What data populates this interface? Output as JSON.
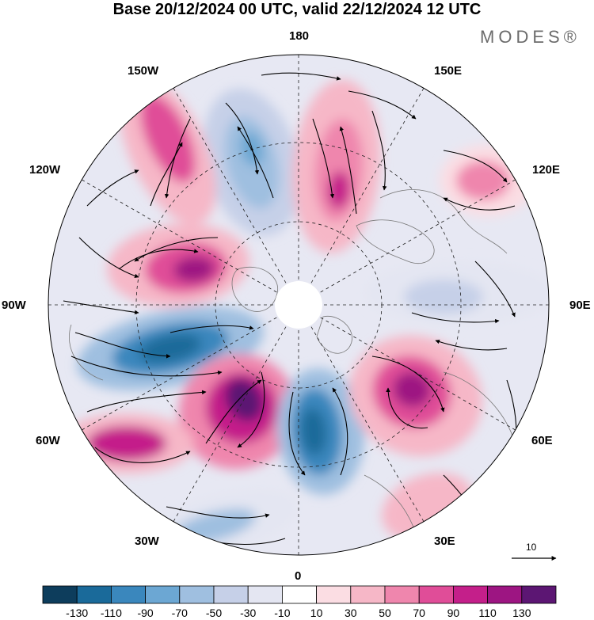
{
  "title": "Base 20/12/2024 00 UTC, valid 22/12/2024 12 UTC",
  "brand": "MODES®",
  "longitude_labels": {
    "lon_180": "180",
    "lon_150E": "150E",
    "lon_120E": "120E",
    "lon_90E": "90E",
    "lon_60E": "60E",
    "lon_30E": "30E",
    "lon_0": "0",
    "lon_30W": "30W",
    "lon_60W": "60W",
    "lon_90W": "90W",
    "lon_120W": "120W",
    "lon_150W": "150W"
  },
  "vector_scale_label": "10",
  "colorbar": {
    "ticks": [
      "-130",
      "-110",
      "-90",
      "-70",
      "-50",
      "-30",
      "-10",
      "10",
      "30",
      "50",
      "70",
      "90",
      "110",
      "130"
    ],
    "colors": [
      "#0d3d5c",
      "#1a6a9a",
      "#3a87bd",
      "#6ca7d3",
      "#9fbfe0",
      "#c6d0e8",
      "#e4e6f2",
      "#ffffff",
      "#fbdde3",
      "#f6b7c7",
      "#ef86ad",
      "#e04d98",
      "#c41f8a",
      "#9d1582",
      "#5c1673"
    ]
  },
  "anomaly_fields": [
    {
      "name": "trough-150w-180",
      "value": -80
    },
    {
      "name": "ridge-160w",
      "value": 80
    },
    {
      "name": "ridge-170e-150e",
      "value": 90
    },
    {
      "name": "ridge-120e",
      "value": 60
    },
    {
      "name": "ridge-105w",
      "value": 110
    },
    {
      "name": "trough-90e",
      "value": -50
    },
    {
      "name": "trough-75w",
      "value": -130
    },
    {
      "name": "ridge-45w",
      "value": 130
    },
    {
      "name": "ridge-60w-70w",
      "value": 90
    },
    {
      "name": "trough-10w",
      "value": -130
    },
    {
      "name": "ridge-45e",
      "value": 110
    },
    {
      "name": "trough-35w-20w",
      "value": -60
    },
    {
      "name": "ridge-30e-20e",
      "value": 40
    }
  ]
}
